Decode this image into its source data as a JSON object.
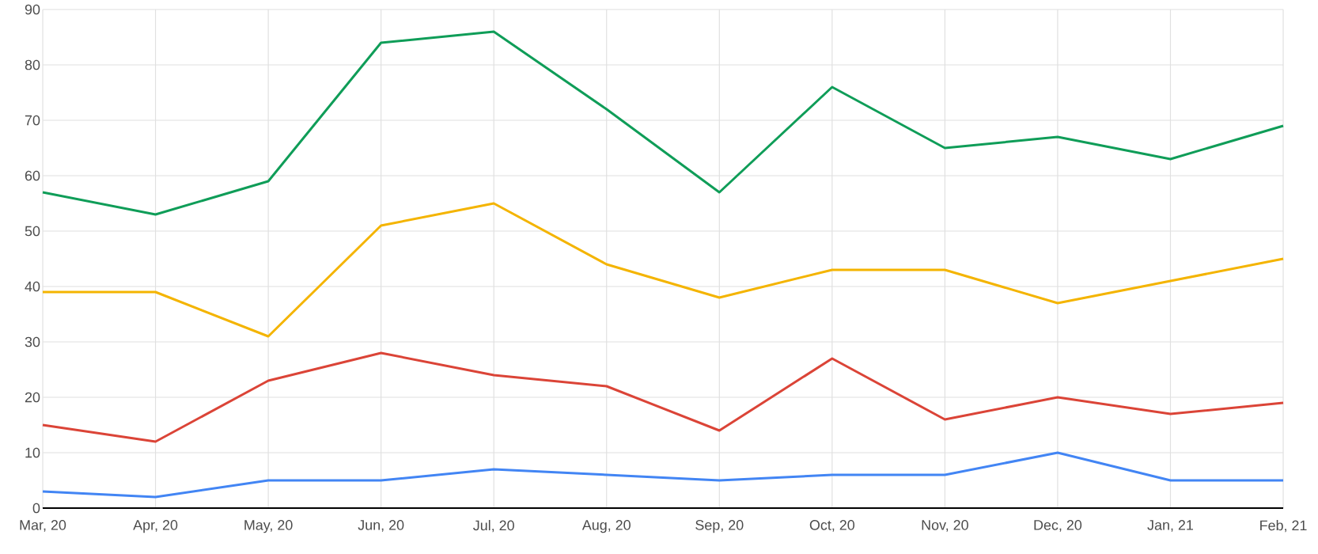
{
  "chart_data": {
    "type": "line",
    "categories": [
      "Mar, 20",
      "Apr, 20",
      "May, 20",
      "Jun, 20",
      "Jul, 20",
      "Aug, 20",
      "Sep, 20",
      "Oct, 20",
      "Nov, 20",
      "Dec, 20",
      "Jan, 21",
      "Feb, 21"
    ],
    "series": [
      {
        "color": "#0f9d58",
        "values": [
          57,
          53,
          59,
          84,
          86,
          72,
          57,
          76,
          65,
          67,
          63,
          69
        ]
      },
      {
        "color": "#f4b400",
        "values": [
          39,
          39,
          31,
          51,
          55,
          44,
          38,
          43,
          43,
          37,
          41,
          45
        ]
      },
      {
        "color": "#db4437",
        "values": [
          15,
          12,
          23,
          28,
          24,
          22,
          14,
          27,
          16,
          20,
          17,
          19
        ]
      },
      {
        "color": "#4285f4",
        "values": [
          3,
          2,
          5,
          5,
          7,
          6,
          5,
          6,
          6,
          10,
          5,
          5
        ]
      }
    ],
    "ylim": [
      0,
      90
    ],
    "yticks": [
      0,
      10,
      20,
      30,
      40,
      50,
      60,
      70,
      80,
      90
    ],
    "grid": true,
    "marker": "none",
    "line_style": "solid"
  }
}
